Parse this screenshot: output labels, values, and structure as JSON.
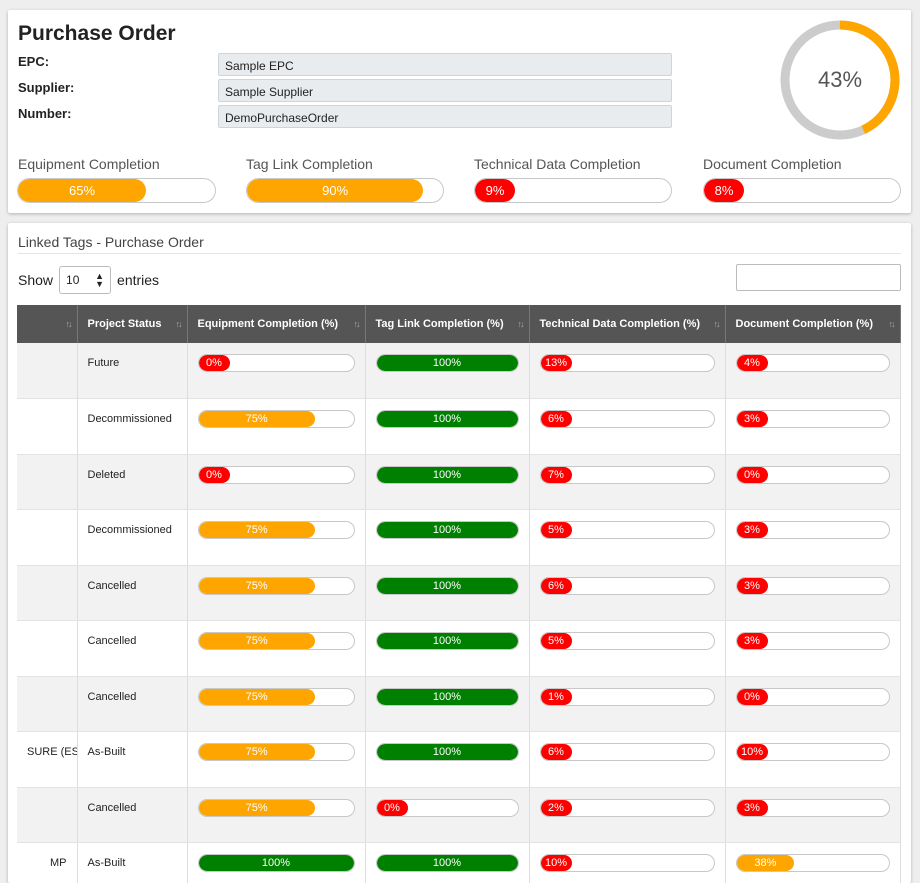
{
  "header": {
    "title": "Purchase Order",
    "fields": [
      {
        "label": "EPC:",
        "value": "Sample EPC"
      },
      {
        "label": "Supplier:",
        "value": "Sample Supplier"
      },
      {
        "label": "Number:",
        "value": "DemoPurchaseOrder"
      }
    ],
    "overall": {
      "label": "43%",
      "value": 43,
      "color": "#ffa500",
      "track_color": "#cccccc"
    },
    "stats": [
      {
        "label": "Equipment Completion",
        "value": 65,
        "text": "65%",
        "color": "orange"
      },
      {
        "label": "Tag Link Completion",
        "value": 90,
        "text": "90%",
        "color": "orange"
      },
      {
        "label": "Technical Data Completion",
        "value": 9,
        "text": "9%",
        "color": "red"
      },
      {
        "label": "Document Completion",
        "value": 8,
        "text": "8%",
        "color": "red"
      }
    ]
  },
  "linked_tags": {
    "title": "Linked Tags - Purchase Order",
    "show_label": "Show",
    "entries_value": "10",
    "entries_label": "entries",
    "search_value": "",
    "columns": [
      "",
      "Project Status",
      "Equipment Completion (%)",
      "Tag Link Completion (%)",
      "Technical Data Completion (%)",
      "Document Completion (%)"
    ],
    "rows": [
      {
        "tag": "",
        "status": "Future",
        "equipment": {
          "v": 0,
          "t": "0%",
          "c": "red"
        },
        "taglink": {
          "v": 100,
          "t": "100%",
          "c": "green"
        },
        "technical": {
          "v": 13,
          "t": "13%",
          "c": "red"
        },
        "document": {
          "v": 4,
          "t": "4%",
          "c": "red"
        }
      },
      {
        "tag": "",
        "status": "Decommissioned",
        "equipment": {
          "v": 75,
          "t": "75%",
          "c": "orange"
        },
        "taglink": {
          "v": 100,
          "t": "100%",
          "c": "green"
        },
        "technical": {
          "v": 6,
          "t": "6%",
          "c": "red"
        },
        "document": {
          "v": 3,
          "t": "3%",
          "c": "red"
        }
      },
      {
        "tag": "",
        "status": "Deleted",
        "equipment": {
          "v": 0,
          "t": "0%",
          "c": "red"
        },
        "taglink": {
          "v": 100,
          "t": "100%",
          "c": "green"
        },
        "technical": {
          "v": 7,
          "t": "7%",
          "c": "red"
        },
        "document": {
          "v": 0,
          "t": "0%",
          "c": "red"
        }
      },
      {
        "tag": "",
        "status": "Decommissioned",
        "equipment": {
          "v": 75,
          "t": "75%",
          "c": "orange"
        },
        "taglink": {
          "v": 100,
          "t": "100%",
          "c": "green"
        },
        "technical": {
          "v": 5,
          "t": "5%",
          "c": "red"
        },
        "document": {
          "v": 3,
          "t": "3%",
          "c": "red"
        }
      },
      {
        "tag": "",
        "status": "Cancelled",
        "equipment": {
          "v": 75,
          "t": "75%",
          "c": "orange"
        },
        "taglink": {
          "v": 100,
          "t": "100%",
          "c": "green"
        },
        "technical": {
          "v": 6,
          "t": "6%",
          "c": "red"
        },
        "document": {
          "v": 3,
          "t": "3%",
          "c": "red"
        }
      },
      {
        "tag": "",
        "status": "Cancelled",
        "equipment": {
          "v": 75,
          "t": "75%",
          "c": "orange"
        },
        "taglink": {
          "v": 100,
          "t": "100%",
          "c": "green"
        },
        "technical": {
          "v": 5,
          "t": "5%",
          "c": "red"
        },
        "document": {
          "v": 3,
          "t": "3%",
          "c": "red"
        }
      },
      {
        "tag": "",
        "status": "Cancelled",
        "equipment": {
          "v": 75,
          "t": "75%",
          "c": "orange"
        },
        "taglink": {
          "v": 100,
          "t": "100%",
          "c": "green"
        },
        "technical": {
          "v": 1,
          "t": "1%",
          "c": "red"
        },
        "document": {
          "v": 0,
          "t": "0%",
          "c": "red"
        }
      },
      {
        "tag": "SURE (ESD)",
        "status": "As-Built",
        "equipment": {
          "v": 75,
          "t": "75%",
          "c": "orange"
        },
        "taglink": {
          "v": 100,
          "t": "100%",
          "c": "green"
        },
        "technical": {
          "v": 6,
          "t": "6%",
          "c": "red"
        },
        "document": {
          "v": 10,
          "t": "10%",
          "c": "red"
        }
      },
      {
        "tag": "",
        "status": "Cancelled",
        "equipment": {
          "v": 75,
          "t": "75%",
          "c": "orange"
        },
        "taglink": {
          "v": 0,
          "t": "0%",
          "c": "red"
        },
        "technical": {
          "v": 2,
          "t": "2%",
          "c": "red"
        },
        "document": {
          "v": 3,
          "t": "3%",
          "c": "red"
        }
      },
      {
        "tag": "MP",
        "status": "As-Built",
        "equipment": {
          "v": 100,
          "t": "100%",
          "c": "green"
        },
        "taglink": {
          "v": 100,
          "t": "100%",
          "c": "green"
        },
        "technical": {
          "v": 10,
          "t": "10%",
          "c": "red"
        },
        "document": {
          "v": 38,
          "t": "38%",
          "c": "orange"
        }
      }
    ]
  }
}
